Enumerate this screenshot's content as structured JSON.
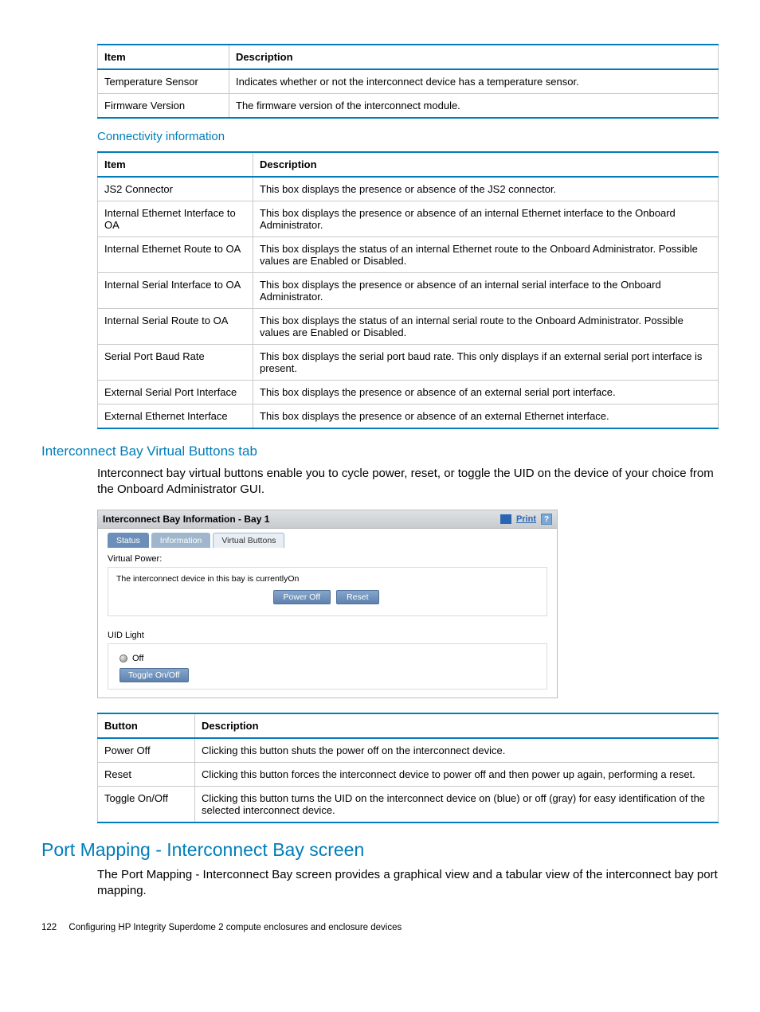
{
  "colors": {
    "accent": "#007dba",
    "tableBorder": "#c9c9c9",
    "btnBg": "#6b8fb8"
  },
  "table1": {
    "headers": [
      "Item",
      "Description"
    ],
    "rows": [
      [
        "Temperature Sensor",
        "Indicates whether or not the interconnect device has a temperature sensor."
      ],
      [
        "Firmware Version",
        "The firmware version of the interconnect module."
      ]
    ]
  },
  "connTitle": "Connectivity information",
  "table2": {
    "headers": [
      "Item",
      "Description"
    ],
    "rows": [
      [
        "JS2 Connector",
        "This box displays the presence or absence of the JS2 connector."
      ],
      [
        "Internal Ethernet Interface to OA",
        "This box displays the presence or absence of an internal Ethernet interface to the Onboard Administrator."
      ],
      [
        "Internal Ethernet Route to OA",
        "This box displays the status of an internal Ethernet route to the Onboard Administrator. Possible values are Enabled or Disabled."
      ],
      [
        "Internal Serial Interface to OA",
        "This box displays the presence or absence of an internal serial interface to the Onboard Administrator."
      ],
      [
        "Internal Serial Route to OA",
        "This box displays the status of an internal serial route to the Onboard Administrator. Possible values are Enabled or Disabled."
      ],
      [
        "Serial Port Baud Rate",
        "This box displays the serial port baud rate. This only displays if an external serial port interface is present."
      ],
      [
        "External Serial Port Interface",
        "This box displays the presence or absence of an external serial port interface."
      ],
      [
        "External Ethernet Interface",
        "This box displays the presence or absence of an external Ethernet interface."
      ]
    ]
  },
  "vbTitle": "Interconnect Bay Virtual Buttons tab",
  "vbBody": "Interconnect bay virtual buttons enable you to cycle power, reset, or toggle the UID on the device of your choice from the Onboard Administrator GUI.",
  "shot": {
    "title": "Interconnect Bay Information - Bay 1",
    "print": "Print",
    "tabs": {
      "status": "Status",
      "info": "Information",
      "vb": "Virtual Buttons"
    },
    "vpLabel": "Virtual Power:",
    "vpText1": "The interconnect device in this bay is currently",
    "vpText2": "On",
    "powerOff": "Power Off",
    "reset": "Reset",
    "uidLabel": "UID Light",
    "uidState": "Off",
    "toggle": "Toggle On/Off"
  },
  "table3": {
    "headers": [
      "Button",
      "Description"
    ],
    "rows": [
      [
        "Power Off",
        "Clicking this button shuts the power off on the interconnect device."
      ],
      [
        "Reset",
        "Clicking this button forces the interconnect device to power off and then power up again, performing a reset."
      ],
      [
        "Toggle On/Off",
        "Clicking this button turns the UID on the interconnect device on (blue) or off (gray) for easy identification of the selected interconnect device."
      ]
    ]
  },
  "portTitle": "Port Mapping - Interconnect Bay screen",
  "portBody": "The Port Mapping - Interconnect Bay screen provides a graphical view and a tabular view of the interconnect bay port mapping.",
  "footer": {
    "page": "122",
    "text": "Configuring HP Integrity Superdome 2 compute enclosures and enclosure devices"
  }
}
